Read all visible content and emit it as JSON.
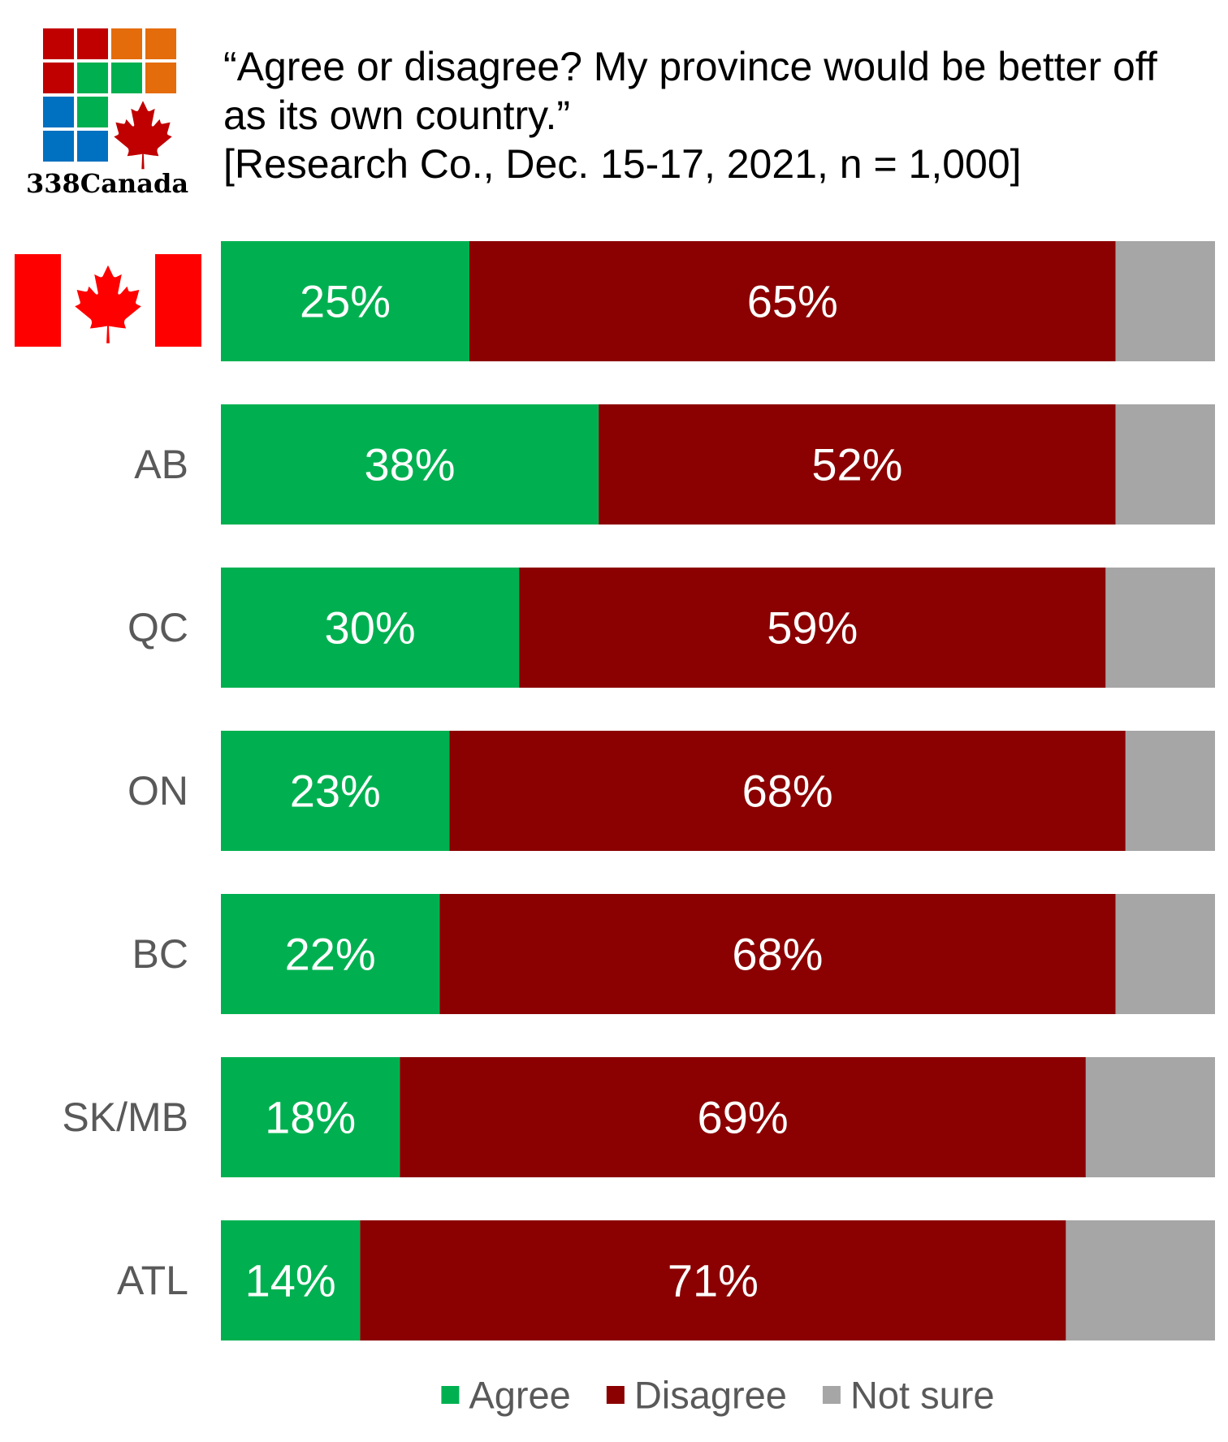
{
  "brand": {
    "name": "338Canada"
  },
  "colors": {
    "agree": "#00b050",
    "disagree": "#8b0000",
    "not_sure": "#a6a6a6",
    "flag_red": "#ff0000",
    "logo_red": "#c00000",
    "logo_green": "#00b050",
    "logo_orange": "#e46c0a",
    "logo_blue": "#0070c0",
    "maple_red": "#c00000"
  },
  "chart_data": {
    "type": "bar",
    "orientation": "horizontal",
    "stacked": true,
    "title": {
      "line1": "“Agree or disagree? My province would be better off",
      "line2": "as its own country.”",
      "line3": "[Research Co., Dec. 15-17, 2021, n = 1,000]"
    },
    "categories": [
      "Canada",
      "AB",
      "QC",
      "ON",
      "BC",
      "SK/MB",
      "ATL"
    ],
    "category_display": [
      "flag-icon",
      "AB",
      "QC",
      "ON",
      "BC",
      "SK/MB",
      "ATL"
    ],
    "series": [
      {
        "name": "Agree",
        "key": "agree",
        "values": [
          25,
          38,
          30,
          23,
          22,
          18,
          14
        ],
        "labels": [
          "25%",
          "38%",
          "30%",
          "23%",
          "22%",
          "18%",
          "14%"
        ]
      },
      {
        "name": "Disagree",
        "key": "disagree",
        "values": [
          65,
          52,
          59,
          68,
          68,
          69,
          71
        ],
        "labels": [
          "65%",
          "52%",
          "59%",
          "68%",
          "68%",
          "69%",
          "71%"
        ]
      },
      {
        "name": "Not sure",
        "key": "not_sure",
        "values": [
          10,
          10,
          11,
          9,
          10,
          13,
          15
        ],
        "labels": [
          "",
          "",
          "",
          "",
          "",
          "",
          ""
        ]
      }
    ],
    "xlim": [
      0,
      100
    ],
    "grid": false,
    "legend": {
      "position": "bottom-center",
      "items": [
        "Agree",
        "Disagree",
        "Not sure"
      ]
    }
  }
}
